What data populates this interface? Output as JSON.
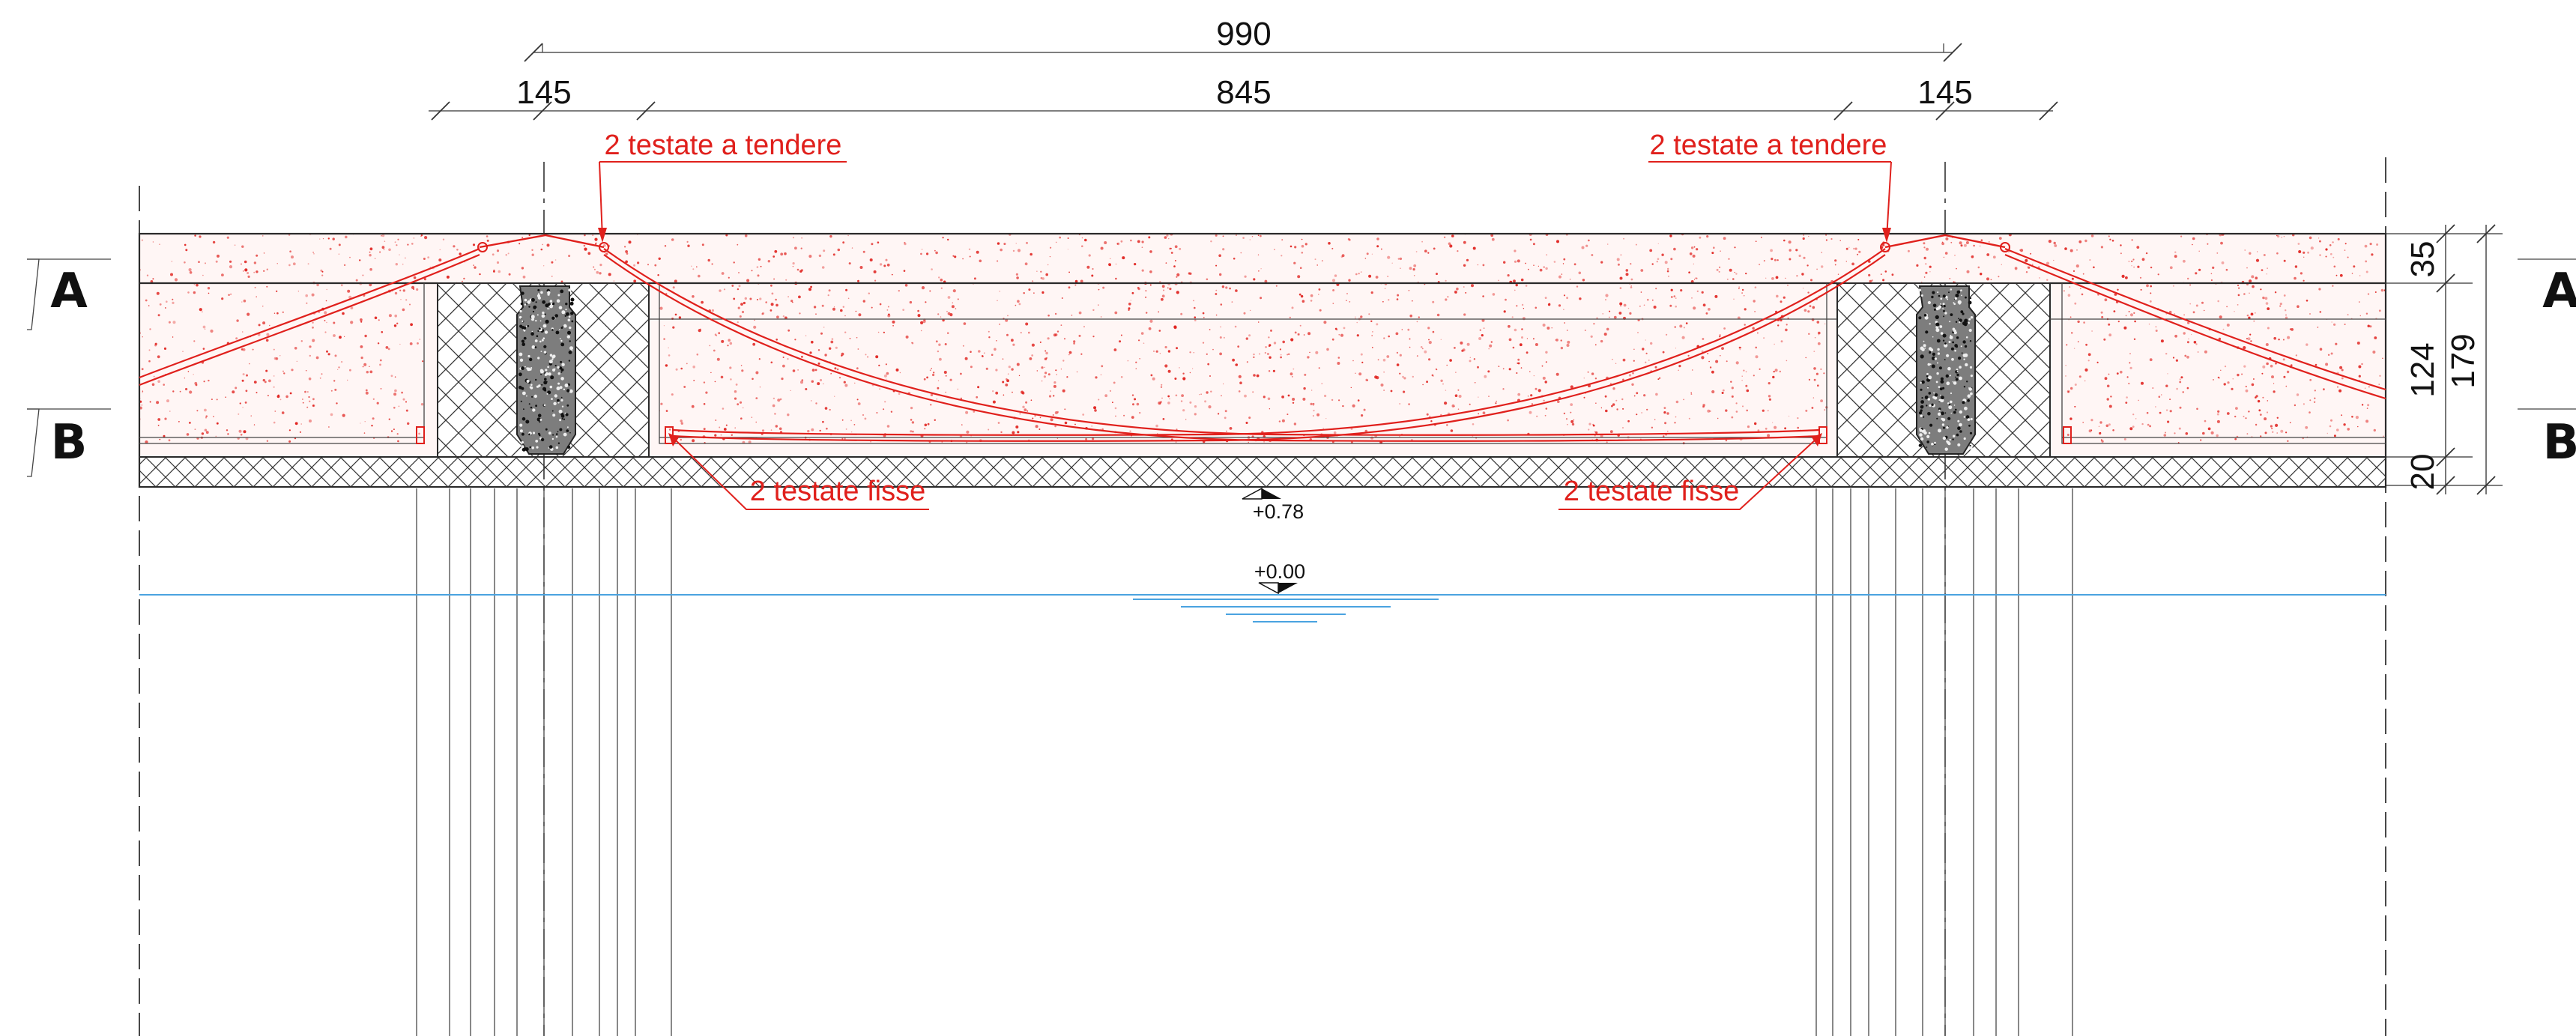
{
  "dimensions": {
    "overall": "990",
    "left_span": "145",
    "main_span": "845",
    "right_span": "145",
    "slab_top": "35",
    "beam_web": "124",
    "total_depth": "179",
    "bottom_slab": "20"
  },
  "sections": {
    "a_left": "A",
    "b_left": "B",
    "a_right": "A",
    "b_right": "B"
  },
  "annotations": {
    "tendons_tensioned_left": "2 testate a tendere",
    "tendons_tensioned_right": "2 testate a tendere",
    "tendons_fixed_left": "2 testate fisse",
    "tendons_fixed_right": "2 testate fisse"
  },
  "levels": {
    "deck": "+0.78",
    "water": "+0.00"
  },
  "colors": {
    "annotation": "#e0201c",
    "concrete_dots": "#e0201c",
    "line": "#2a2a2a",
    "water": "#4aa3e0"
  },
  "icons": [
    "level-marker-icon",
    "section-flag-icon",
    "arrow-icon"
  ]
}
